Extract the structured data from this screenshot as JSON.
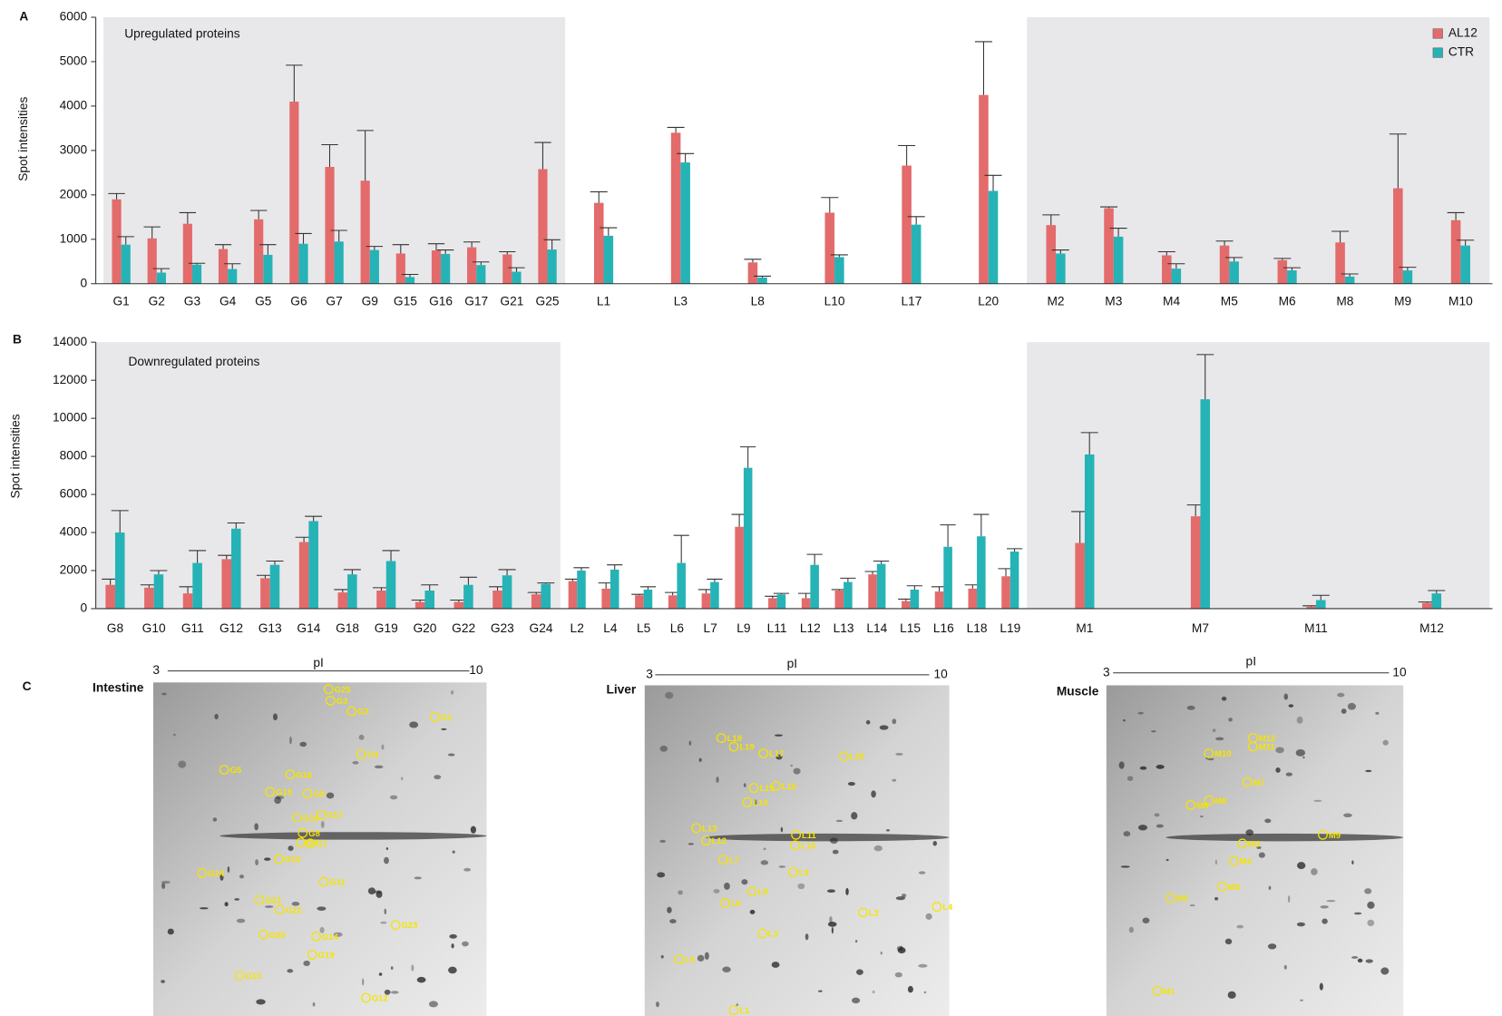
{
  "chart_data": [
    {
      "type": "bar",
      "panel": "A",
      "title": "Upregulated proteins",
      "y_label": "Spot intensities",
      "categories": [
        "G1",
        "G2",
        "G3",
        "G4",
        "G5",
        "G6",
        "G7",
        "G9",
        "G15",
        "G16",
        "G17",
        "G21",
        "G25",
        "L1",
        "L3",
        "L8",
        "L10",
        "L17",
        "L20",
        "M2",
        "M3",
        "M4",
        "M5",
        "M6",
        "M8",
        "M9",
        "M10"
      ],
      "series": [
        {
          "name": "AL12",
          "color": "#e36b6b",
          "values": [
            1900,
            1020,
            1350,
            780,
            1450,
            4100,
            2630,
            2320,
            680,
            750,
            820,
            660,
            2580,
            1820,
            3400,
            480,
            1600,
            2660,
            4250,
            1320,
            1700,
            640,
            860,
            530,
            930,
            2150,
            1430
          ],
          "errors": [
            130,
            260,
            250,
            100,
            200,
            820,
            500,
            1130,
            200,
            150,
            120,
            60,
            600,
            250,
            120,
            70,
            340,
            450,
            1200,
            230,
            30,
            80,
            100,
            40,
            250,
            1220,
            170
          ]
        },
        {
          "name": "CTR",
          "color": "#26b3b6",
          "values": [
            880,
            250,
            430,
            330,
            650,
            900,
            950,
            760,
            150,
            670,
            420,
            270,
            770,
            1080,
            2730,
            140,
            600,
            1330,
            2090,
            680,
            1060,
            340,
            500,
            300,
            160,
            300,
            860
          ],
          "errors": [
            180,
            90,
            30,
            120,
            230,
            230,
            250,
            80,
            60,
            90,
            70,
            90,
            220,
            180,
            200,
            30,
            50,
            180,
            350,
            80,
            190,
            110,
            90,
            60,
            60,
            70,
            120
          ]
        }
      ],
      "ylim": [
        0,
        6000
      ],
      "yticks": [
        0,
        1000,
        2000,
        3000,
        4000,
        5000,
        6000
      ],
      "legend": "upper right"
    },
    {
      "type": "bar",
      "panel": "B",
      "title": "Downregulated proteins",
      "y_label": "Spot intensities",
      "categories": [
        "G8",
        "G10",
        "G11",
        "G12",
        "G13",
        "G14",
        "G18",
        "G19",
        "G20",
        "G22",
        "G23",
        "G24",
        "L2",
        "L4",
        "L5",
        "L6",
        "L7",
        "L9",
        "L11",
        "L12",
        "L13",
        "L14",
        "L15",
        "L16",
        "L18",
        "L19",
        "M1",
        "M7",
        "M11",
        "M12"
      ],
      "series": [
        {
          "color": "#e36b6b",
          "values": [
            1250,
            1100,
            800,
            2600,
            1600,
            3500,
            850,
            950,
            350,
            350,
            950,
            750,
            1450,
            1050,
            700,
            700,
            800,
            4300,
            550,
            550,
            950,
            1800,
            400,
            900,
            1050,
            1700,
            3450,
            4850,
            100,
            300
          ],
          "errors": [
            300,
            150,
            350,
            200,
            150,
            250,
            150,
            150,
            100,
            100,
            200,
            100,
            100,
            300,
            50,
            150,
            200,
            650,
            100,
            250,
            50,
            150,
            100,
            250,
            200,
            400,
            1650,
            600,
            50,
            50
          ]
        },
        {
          "color": "#26b3b6",
          "values": [
            4000,
            1800,
            2400,
            4200,
            2300,
            4600,
            1800,
            2500,
            950,
            1250,
            1750,
            1300,
            2000,
            2050,
            1000,
            2400,
            1400,
            7400,
            750,
            2300,
            1400,
            2350,
            1000,
            3250,
            3800,
            3000,
            8100,
            11000,
            450,
            800
          ],
          "errors": [
            1150,
            200,
            650,
            300,
            200,
            250,
            250,
            550,
            300,
            400,
            300,
            50,
            150,
            250,
            150,
            1450,
            150,
            1100,
            50,
            550,
            200,
            150,
            200,
            1150,
            1150,
            150,
            1150,
            2350,
            250,
            150
          ]
        }
      ],
      "ylim": [
        0,
        14000
      ],
      "yticks": [
        0,
        2000,
        4000,
        6000,
        8000,
        10000,
        12000,
        14000
      ]
    }
  ],
  "panel_c": {
    "panel": "C",
    "axis_label": "pI",
    "pi_range": [
      3,
      10
    ],
    "gels": [
      {
        "title": "Intestine",
        "spots": [
          "G25",
          "G3",
          "G2",
          "G1",
          "G4",
          "G5",
          "G16",
          "G15",
          "G9",
          "G18",
          "G17",
          "G8",
          "G6",
          "G7",
          "G10",
          "G24",
          "G11",
          "G21",
          "G22",
          "G23",
          "G20",
          "G14",
          "G19",
          "G13",
          "G12"
        ]
      },
      {
        "title": "Liver",
        "spots": [
          "L18",
          "L19",
          "L17",
          "L20",
          "L16",
          "L15",
          "L14",
          "L13",
          "L12",
          "L11",
          "L10",
          "L7",
          "L9",
          "L8",
          "L6",
          "L2",
          "L4",
          "L3",
          "L5",
          "L1"
        ]
      },
      {
        "title": "Muscle",
        "spots": [
          "M12",
          "M11",
          "M10",
          "M7",
          "M8",
          "M6",
          "M3",
          "M9",
          "M4",
          "M5",
          "M2",
          "M1"
        ]
      }
    ]
  }
}
